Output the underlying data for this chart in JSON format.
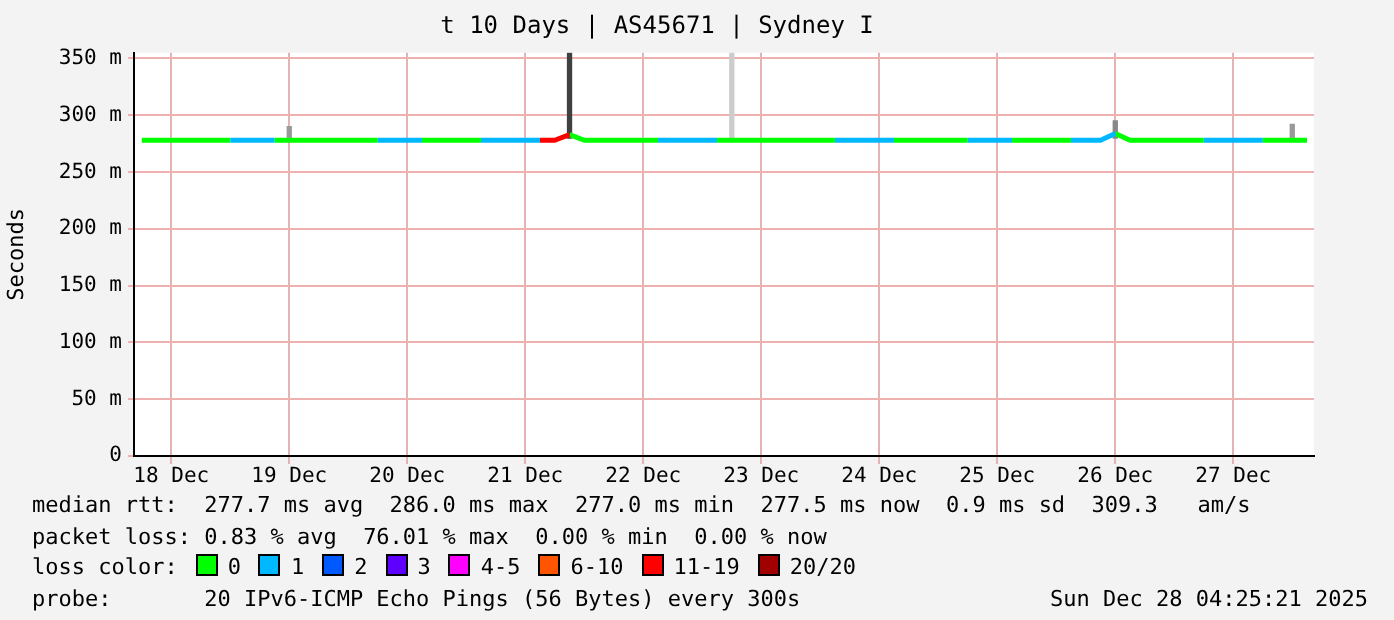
{
  "chart_data": {
    "type": "line",
    "title": "t 10 Days | AS45671 | Sydney I",
    "ylabel": "Seconds",
    "legend_title": "loss color:",
    "legend": "bottom",
    "grid": true,
    "marker": "none",
    "line_style": "solid",
    "xlim": [
      "2025-12-18T04:25",
      "2025-12-28T04:25"
    ],
    "xticks": [
      {
        "value": "2025-12-18T12:00",
        "label": "18 Dec"
      },
      {
        "value": "2025-12-19T12:00",
        "label": "19 Dec"
      },
      {
        "value": "2025-12-20T12:00",
        "label": "20 Dec"
      },
      {
        "value": "2025-12-21T12:00",
        "label": "21 Dec"
      },
      {
        "value": "2025-12-22T12:00",
        "label": "22 Dec"
      },
      {
        "value": "2025-12-23T12:00",
        "label": "23 Dec"
      },
      {
        "value": "2025-12-24T12:00",
        "label": "24 Dec"
      },
      {
        "value": "2025-12-25T12:00",
        "label": "25 Dec"
      },
      {
        "value": "2025-12-26T12:00",
        "label": "26 Dec"
      },
      {
        "value": "2025-12-27T12:00",
        "label": "27 Dec"
      }
    ],
    "ylim": [
      0,
      355
    ],
    "yticks": [
      0,
      {
        "value": 50,
        "label": "50 m"
      },
      {
        "value": 100,
        "label": "100 m"
      },
      {
        "value": 150,
        "label": "150 m"
      },
      {
        "value": 200,
        "label": "200 m"
      },
      {
        "value": 250,
        "label": "250 m"
      },
      {
        "value": 300,
        "label": "300 m"
      },
      {
        "value": 350,
        "label": "350 m"
      }
    ],
    "x": [
      "2025-12-18T06:00",
      "2025-12-18T09:00",
      "2025-12-18T12:00",
      "2025-12-18T15:00",
      "2025-12-18T18:00",
      "2025-12-18T21:00",
      "2025-12-19T00:00",
      "2025-12-19T03:00",
      "2025-12-19T06:00",
      "2025-12-19T09:00",
      "2025-12-19T12:00",
      "2025-12-19T15:00",
      "2025-12-19T18:00",
      "2025-12-19T21:00",
      "2025-12-20T00:00",
      "2025-12-20T03:00",
      "2025-12-20T06:00",
      "2025-12-20T09:00",
      "2025-12-20T12:00",
      "2025-12-20T15:00",
      "2025-12-20T18:00",
      "2025-12-20T21:00",
      "2025-12-21T00:00",
      "2025-12-21T03:00",
      "2025-12-21T06:00",
      "2025-12-21T09:00",
      "2025-12-21T12:00",
      "2025-12-21T15:00",
      "2025-12-21T18:00",
      "2025-12-21T21:00",
      "2025-12-22T00:00",
      "2025-12-22T03:00",
      "2025-12-22T06:00",
      "2025-12-22T09:00",
      "2025-12-22T12:00",
      "2025-12-22T15:00",
      "2025-12-22T18:00",
      "2025-12-22T21:00",
      "2025-12-23T00:00",
      "2025-12-23T03:00",
      "2025-12-23T06:00",
      "2025-12-23T09:00",
      "2025-12-23T12:00",
      "2025-12-23T15:00",
      "2025-12-23T18:00",
      "2025-12-23T21:00",
      "2025-12-24T00:00",
      "2025-12-24T03:00",
      "2025-12-24T06:00",
      "2025-12-24T09:00",
      "2025-12-24T12:00",
      "2025-12-24T15:00",
      "2025-12-24T18:00",
      "2025-12-24T21:00",
      "2025-12-25T00:00",
      "2025-12-25T03:00",
      "2025-12-25T06:00",
      "2025-12-25T09:00",
      "2025-12-25T12:00",
      "2025-12-25T15:00",
      "2025-12-25T18:00",
      "2025-12-25T21:00",
      "2025-12-26T00:00",
      "2025-12-26T03:00",
      "2025-12-26T06:00",
      "2025-12-26T09:00",
      "2025-12-26T12:00",
      "2025-12-26T15:00",
      "2025-12-26T18:00",
      "2025-12-26T21:00",
      "2025-12-27T00:00",
      "2025-12-27T03:00",
      "2025-12-27T06:00",
      "2025-12-27T09:00",
      "2025-12-27T12:00",
      "2025-12-27T15:00",
      "2025-12-27T18:00",
      "2025-12-27T21:00",
      "2025-12-28T00:00",
      "2025-12-28T03:00"
    ],
    "series": [
      {
        "name": "0",
        "color": "#00ff00",
        "values": [
          278,
          278,
          278,
          278,
          278,
          278,
          278,
          null,
          null,
          278,
          278,
          278,
          278,
          278,
          278,
          278,
          278,
          null,
          null,
          278,
          278,
          278,
          278,
          278,
          null,
          null,
          null,
          null,
          null,
          283,
          278,
          278,
          278,
          278,
          278,
          278,
          null,
          null,
          null,
          278,
          278,
          278,
          278,
          278,
          278,
          278,
          278,
          278,
          null,
          null,
          null,
          278,
          278,
          278,
          278,
          278,
          278,
          null,
          null,
          278,
          278,
          278,
          278,
          278,
          null,
          null,
          284,
          278,
          278,
          278,
          278,
          278,
          278,
          null,
          null,
          null,
          278,
          278,
          278,
          278
        ]
      },
      {
        "name": "1",
        "color": "#00b8ff",
        "x": [
          "2025-12-19T00:00",
          "2025-12-19T03:00",
          "2025-12-19T06:00",
          "2025-12-19T09:00",
          "2025-12-19T10:00",
          "2025-12-20T06:00",
          "2025-12-20T09:00",
          "2025-12-20T12:00",
          "2025-12-20T15:00",
          "2025-12-20T16:00",
          "2025-12-21T03:00",
          "2025-12-21T06:00",
          "2025-12-21T09:00",
          "2025-12-21T12:00",
          "2025-12-21T15:00",
          "2025-12-21T16:00",
          "2025-12-22T15:00",
          "2025-12-22T18:00",
          "2025-12-22T21:00",
          "2025-12-23T00:00",
          "2025-12-23T03:00",
          "2025-12-23T04:00",
          "2025-12-24T03:00",
          "2025-12-24T06:00",
          "2025-12-24T09:00",
          "2025-12-24T12:00",
          "2025-12-24T15:00",
          "2025-12-24T16:00",
          "2025-12-25T06:00",
          "2025-12-25T09:00",
          "2025-12-25T12:00",
          "2025-12-25T15:00",
          "2025-12-25T16:00",
          "2025-12-26T03:00",
          "2025-12-26T06:00",
          "2025-12-26T09:00",
          "2025-12-26T12:00",
          "2025-12-26T13:00",
          "2025-12-27T06:00",
          "2025-12-27T09:00",
          "2025-12-27T12:00",
          "2025-12-27T15:00",
          "2025-12-27T18:00"
        ],
        "values": [
          278,
          278,
          278,
          278,
          null,
          278,
          278,
          278,
          278,
          null,
          278,
          278,
          278,
          278,
          278,
          null,
          278,
          278,
          278,
          278,
          278,
          null,
          278,
          278,
          278,
          278,
          278,
          null,
          278,
          278,
          278,
          278,
          null,
          278,
          278,
          278,
          284,
          null,
          278,
          278,
          278,
          278,
          278
        ]
      },
      {
        "name": "2",
        "color": "#0059ff",
        "values": [
          null,
          null,
          null,
          null,
          null,
          null,
          null,
          null,
          null,
          null,
          null,
          null,
          null,
          null,
          null,
          null,
          null,
          null,
          null,
          null,
          null,
          null,
          null,
          null,
          null,
          null,
          null,
          null,
          null,
          null,
          null,
          null,
          null,
          null,
          null,
          null,
          null,
          null,
          null,
          null,
          null,
          null,
          null,
          null,
          null,
          null,
          null,
          null,
          null,
          null,
          null,
          null,
          null,
          null,
          null,
          null,
          null,
          null,
          null,
          null,
          null,
          null,
          null,
          null,
          null,
          null,
          null,
          null,
          null,
          null,
          null,
          null,
          null,
          null,
          null,
          null,
          null,
          null,
          null,
          null
        ]
      },
      {
        "name": "3",
        "color": "#5e00ff",
        "values": [
          null,
          null,
          null,
          null,
          null,
          null,
          null,
          null,
          null,
          null,
          null,
          null,
          null,
          null,
          null,
          null,
          null,
          null,
          null,
          null,
          null,
          null,
          null,
          null,
          null,
          null,
          null,
          null,
          null,
          null,
          null,
          null,
          null,
          null,
          null,
          null,
          null,
          null,
          null,
          null,
          null,
          null,
          null,
          null,
          null,
          null,
          null,
          null,
          null,
          null,
          null,
          null,
          null,
          null,
          null,
          null,
          null,
          null,
          null,
          null,
          null,
          null,
          null,
          null,
          null,
          null,
          null,
          null,
          null,
          null,
          null,
          null,
          null,
          null,
          null,
          null,
          null,
          null,
          null,
          null
        ]
      },
      {
        "name": "4-5",
        "color": "#ff00ff",
        "values": [
          null,
          null,
          null,
          null,
          null,
          null,
          null,
          null,
          null,
          null,
          null,
          null,
          null,
          null,
          null,
          null,
          null,
          null,
          null,
          null,
          null,
          null,
          null,
          null,
          null,
          null,
          null,
          null,
          null,
          null,
          null,
          null,
          null,
          null,
          null,
          null,
          null,
          null,
          null,
          null,
          null,
          null,
          null,
          null,
          null,
          null,
          null,
          null,
          null,
          null,
          null,
          null,
          null,
          null,
          null,
          null,
          null,
          null,
          null,
          null,
          null,
          null,
          null,
          null,
          null,
          null,
          null,
          null,
          null,
          null,
          null,
          null,
          null,
          null,
          null,
          null,
          null,
          null,
          null,
          null
        ]
      },
      {
        "name": "6-10",
        "color": "#ff5500",
        "values": [
          null,
          null,
          null,
          null,
          null,
          null,
          null,
          null,
          null,
          null,
          null,
          null,
          null,
          null,
          null,
          null,
          null,
          null,
          null,
          null,
          null,
          null,
          null,
          null,
          null,
          null,
          null,
          null,
          null,
          null,
          null,
          null,
          null,
          null,
          null,
          null,
          null,
          null,
          null,
          null,
          null,
          null,
          null,
          null,
          null,
          null,
          null,
          null,
          null,
          null,
          null,
          null,
          null,
          null,
          null,
          null,
          null,
          null,
          null,
          null,
          null,
          null,
          null,
          null,
          null,
          null,
          null,
          null,
          null,
          null,
          null,
          null,
          null,
          null,
          null,
          null,
          null,
          null,
          null,
          null
        ]
      },
      {
        "name": "11-19",
        "color": "#ff0000",
        "x": [
          "2025-12-21T15:00",
          "2025-12-21T18:00",
          "2025-12-21T21:00"
        ],
        "values": [
          278,
          278,
          283
        ]
      },
      {
        "name": "20/20",
        "color": "#a10000",
        "values": [
          null,
          null,
          null,
          null,
          null,
          null,
          null,
          null,
          null,
          null,
          null,
          null,
          null,
          null,
          null,
          null,
          null,
          null,
          null,
          null,
          null,
          null,
          null,
          null,
          null,
          null,
          null,
          null,
          null,
          null,
          null,
          null,
          null,
          null,
          null,
          null,
          null,
          null,
          null,
          null,
          null,
          null,
          null,
          null,
          null,
          null,
          null,
          null,
          null,
          null,
          null,
          null,
          null,
          null,
          null,
          null,
          null,
          null,
          null,
          null,
          null,
          null,
          null,
          null,
          null,
          null,
          null,
          null,
          null,
          null,
          null,
          null,
          null,
          null,
          null,
          null,
          null,
          null,
          null,
          null
        ]
      },
      {
        "type": "bar",
        "colors": [
          "#999999",
          "#404040",
          "#cccccc",
          "#888888",
          "#999999"
        ],
        "x": [
          "2025-12-19T12:00",
          "2025-12-21T21:00",
          "2025-12-23T06:00",
          "2025-12-26T12:00",
          "2025-12-28T00:00"
        ],
        "base": [
          280,
          280,
          280,
          280,
          280
        ],
        "values": [
          10,
          75,
          75,
          15,
          12
        ]
      }
    ],
    "annotations": [
      "median rtt:  277.7 ms avg  286.0 ms max  277.0 ms min  277.5 ms now  0.9 ms sd  309.3   am/s",
      "packet loss: 0.83 % avg  76.01 % max  0.00 % min  0.00 % now",
      "probe:       20 IPv6-ICMP Echo Pings (56 Bytes) every 300s",
      "Sun Dec 28 04:25:21 2025"
    ]
  }
}
